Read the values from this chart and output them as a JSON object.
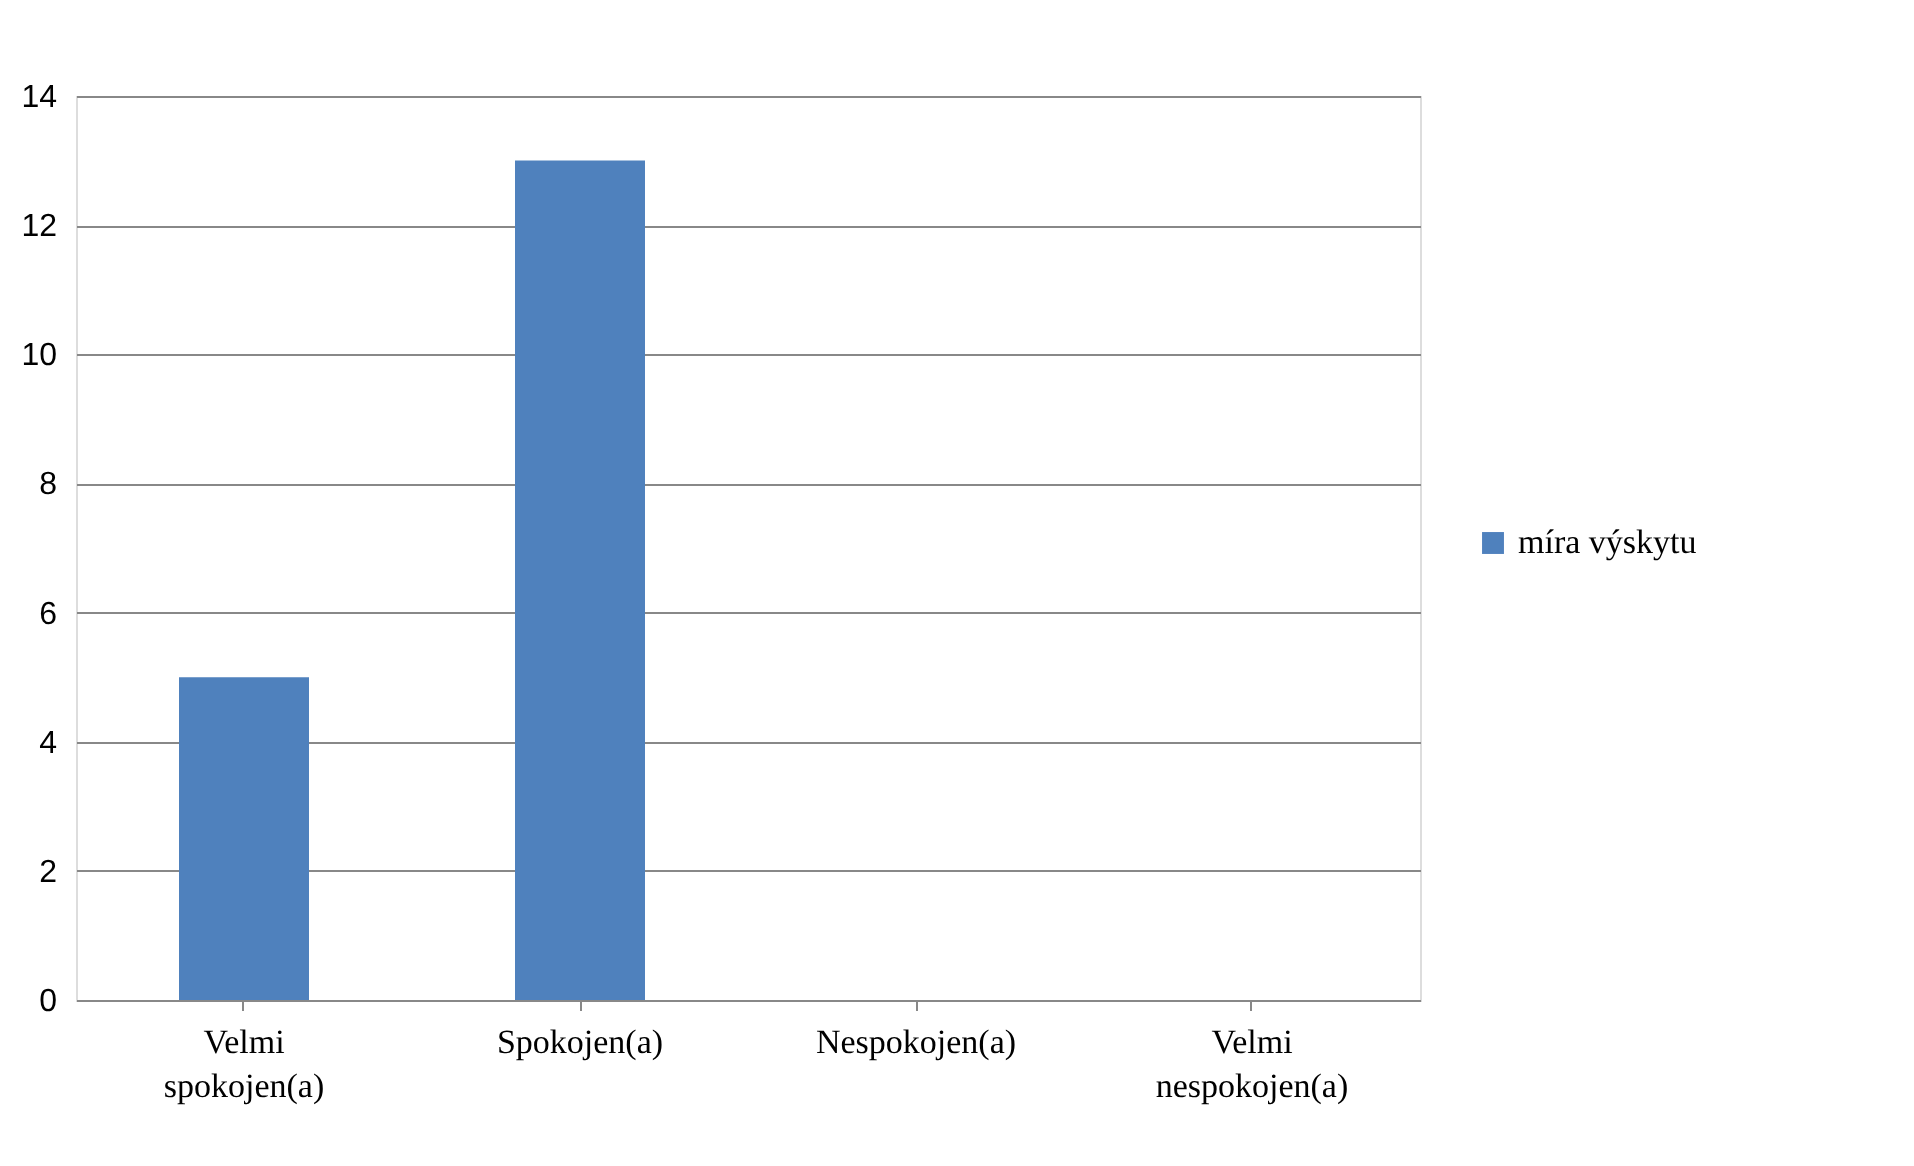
{
  "chart_data": {
    "type": "bar",
    "categories": [
      "Velmi spokojen(a)",
      "Spokojen(a)",
      "Nespokojen(a)",
      "Velmi nespokojen(a)"
    ],
    "series": [
      {
        "name": "míra výskytu",
        "color": "#4f81bd",
        "values": [
          5,
          13,
          0,
          0
        ]
      }
    ],
    "ylim": [
      0,
      14
    ],
    "yticks": [
      0,
      2,
      4,
      6,
      8,
      10,
      12,
      14
    ],
    "grid": "y",
    "legend": "right"
  }
}
